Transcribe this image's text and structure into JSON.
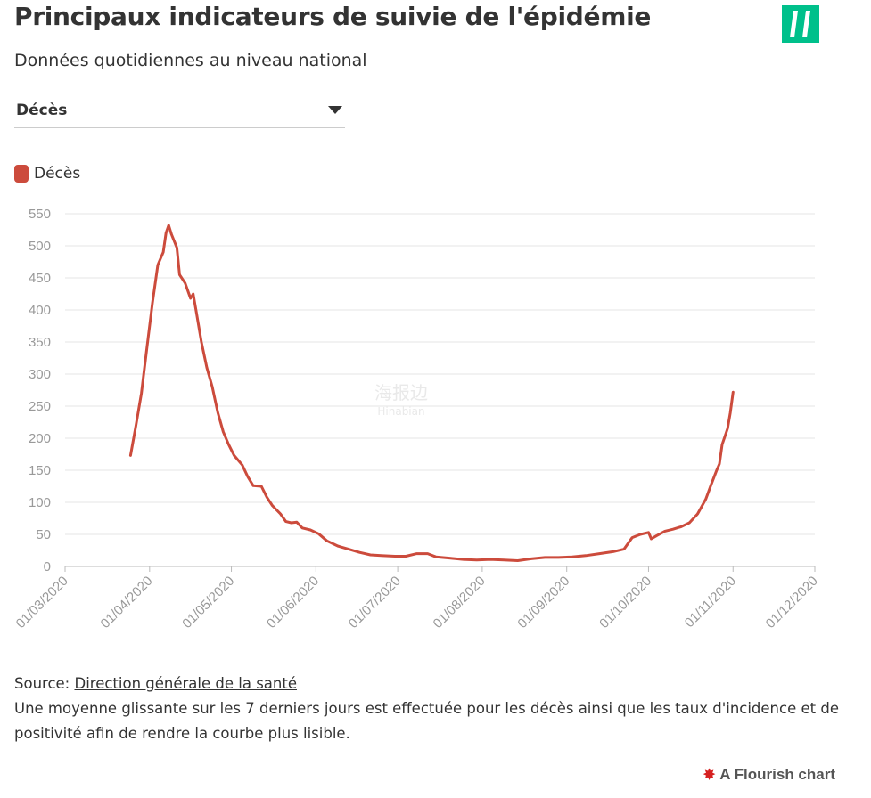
{
  "header": {
    "title": "Principaux indicateurs de suivie de l'épidémie",
    "subtitle": "Données quotidiennes au niveau national"
  },
  "selector": {
    "selected": "Décès"
  },
  "legend": {
    "label": "Décès",
    "color": "#cc4b3c"
  },
  "watermark": {
    "text_cn": "海报边",
    "text_en": "Hinabian"
  },
  "chart_data": {
    "type": "line",
    "title": "",
    "xlabel": "",
    "ylabel": "",
    "ylim": [
      0,
      550
    ],
    "yticks": [
      0,
      50,
      100,
      150,
      200,
      250,
      300,
      350,
      400,
      450,
      500,
      550
    ],
    "xlim": [
      "2020-03-01",
      "2020-12-01"
    ],
    "xticks": [
      "01/03/2020",
      "01/04/2020",
      "01/05/2020",
      "01/06/2020",
      "01/07/2020",
      "01/08/2020",
      "01/09/2020",
      "01/10/2020",
      "01/11/2020",
      "01/12/2020"
    ],
    "grid": true,
    "series": [
      {
        "name": "Décès",
        "color": "#cc4b3c",
        "points": [
          [
            "2020-03-25",
            173
          ],
          [
            "2020-03-27",
            220
          ],
          [
            "2020-03-29",
            270
          ],
          [
            "2020-03-31",
            340
          ],
          [
            "2020-04-02",
            410
          ],
          [
            "2020-04-04",
            470
          ],
          [
            "2020-04-06",
            490
          ],
          [
            "2020-04-07",
            520
          ],
          [
            "2020-04-08",
            532
          ],
          [
            "2020-04-09",
            518
          ],
          [
            "2020-04-11",
            497
          ],
          [
            "2020-04-12",
            455
          ],
          [
            "2020-04-14",
            442
          ],
          [
            "2020-04-16",
            418
          ],
          [
            "2020-04-17",
            425
          ],
          [
            "2020-04-18",
            400
          ],
          [
            "2020-04-20",
            350
          ],
          [
            "2020-04-22",
            310
          ],
          [
            "2020-04-24",
            280
          ],
          [
            "2020-04-26",
            240
          ],
          [
            "2020-04-28",
            210
          ],
          [
            "2020-04-30",
            190
          ],
          [
            "2020-05-02",
            173
          ],
          [
            "2020-05-05",
            158
          ],
          [
            "2020-05-07",
            140
          ],
          [
            "2020-05-09",
            126
          ],
          [
            "2020-05-12",
            125
          ],
          [
            "2020-05-14",
            108
          ],
          [
            "2020-05-16",
            95
          ],
          [
            "2020-05-19",
            82
          ],
          [
            "2020-05-21",
            70
          ],
          [
            "2020-05-23",
            68
          ],
          [
            "2020-05-25",
            69
          ],
          [
            "2020-05-27",
            60
          ],
          [
            "2020-05-30",
            57
          ],
          [
            "2020-06-02",
            51
          ],
          [
            "2020-06-05",
            40
          ],
          [
            "2020-06-09",
            32
          ],
          [
            "2020-06-13",
            27
          ],
          [
            "2020-06-17",
            22
          ],
          [
            "2020-06-21",
            18
          ],
          [
            "2020-06-25",
            17
          ],
          [
            "2020-06-30",
            16
          ],
          [
            "2020-07-04",
            16
          ],
          [
            "2020-07-08",
            20
          ],
          [
            "2020-07-12",
            20
          ],
          [
            "2020-07-15",
            15
          ],
          [
            "2020-07-20",
            13
          ],
          [
            "2020-07-25",
            11
          ],
          [
            "2020-07-30",
            10
          ],
          [
            "2020-08-04",
            11
          ],
          [
            "2020-08-09",
            10
          ],
          [
            "2020-08-14",
            9
          ],
          [
            "2020-08-19",
            12
          ],
          [
            "2020-08-24",
            14
          ],
          [
            "2020-08-29",
            14
          ],
          [
            "2020-09-03",
            15
          ],
          [
            "2020-09-08",
            17
          ],
          [
            "2020-09-13",
            20
          ],
          [
            "2020-09-18",
            23
          ],
          [
            "2020-09-22",
            27
          ],
          [
            "2020-09-25",
            45
          ],
          [
            "2020-09-28",
            50
          ],
          [
            "2020-10-01",
            53
          ],
          [
            "2020-10-02",
            43
          ],
          [
            "2020-10-04",
            48
          ],
          [
            "2020-10-07",
            55
          ],
          [
            "2020-10-10",
            58
          ],
          [
            "2020-10-13",
            62
          ],
          [
            "2020-10-16",
            68
          ],
          [
            "2020-10-19",
            82
          ],
          [
            "2020-10-22",
            105
          ],
          [
            "2020-10-24",
            128
          ],
          [
            "2020-10-26",
            150
          ],
          [
            "2020-10-27",
            160
          ],
          [
            "2020-10-28",
            190
          ],
          [
            "2020-10-30",
            215
          ],
          [
            "2020-10-31",
            240
          ],
          [
            "2020-11-01",
            272
          ]
        ]
      }
    ]
  },
  "footer": {
    "source_prefix": "Source: ",
    "source_link": "Direction générale de la santé",
    "note": "Une moyenne glissante sur les 7 derniers jours est effectuée pour les décès ainsi que les taux d'incidence et de positivité afin de rendre la courbe plus lisible.",
    "flourish": "A Flourish chart"
  }
}
